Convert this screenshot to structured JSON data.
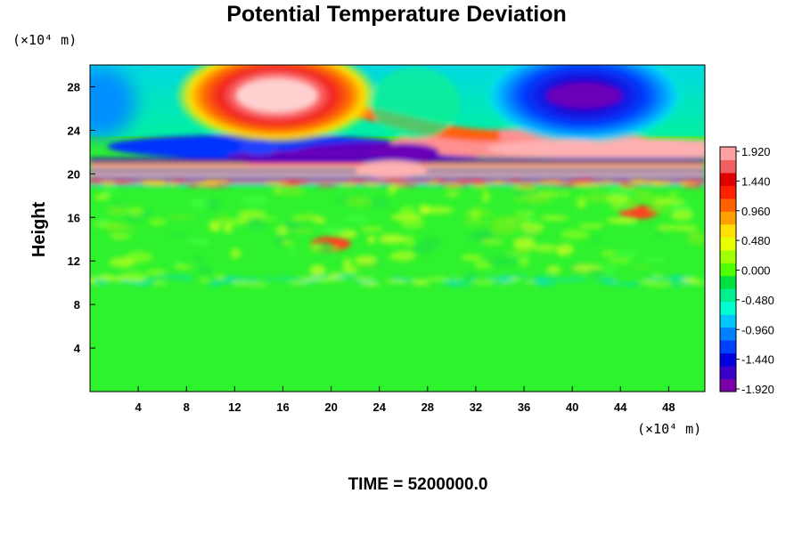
{
  "chart_data": {
    "type": "heatmap",
    "title": "Potential Temperature Deviation",
    "xlabel": "",
    "ylabel": "Height",
    "x_unit": "(×10⁴ m)",
    "y_unit": "(×10⁴ m)",
    "xlim": [
      0,
      51
    ],
    "ylim": [
      0,
      30
    ],
    "x_ticks": [
      "4",
      "8",
      "12",
      "16",
      "20",
      "24",
      "28",
      "32",
      "36",
      "40",
      "44",
      "48"
    ],
    "y_ticks": [
      "4",
      "8",
      "12",
      "16",
      "20",
      "24",
      "28"
    ],
    "colorbar": {
      "range": [
        -1.92,
        1.92
      ],
      "tick_labels": [
        "1.920",
        "1.440",
        "0.960",
        "0.480",
        "0.000",
        "-0.480",
        "-0.960",
        "-1.440",
        "-1.920"
      ],
      "colors": [
        "#7a00a8",
        "#3a00c8",
        "#0000e0",
        "#0040ff",
        "#0080ff",
        "#00c8ff",
        "#00ffd0",
        "#00f090",
        "#00e040",
        "#50ff00",
        "#a0ff00",
        "#e8ff00",
        "#ffe000",
        "#ffa000",
        "#ff6000",
        "#ff2000",
        "#e00000",
        "#f06060",
        "#ffa0a0"
      ]
    },
    "footer": "TIME = 5200000.0",
    "features": [
      {
        "x": 15.5,
        "y": 27.2,
        "value": 1.92
      },
      {
        "x": 41,
        "y": 27.2,
        "value": -1.92
      },
      {
        "x": 14,
        "y": 22.4,
        "value": -1.5
      },
      {
        "x": 26,
        "y": 22,
        "value": -1.92
      },
      {
        "x": 40,
        "y": 22.3,
        "value": 1.92
      },
      {
        "x": 25,
        "y": 20.4,
        "value": 1.92
      },
      {
        "x": 20,
        "y": 13.6,
        "value": 1.5
      },
      {
        "x": 45.5,
        "y": 16.5,
        "value": 1.6
      }
    ]
  }
}
